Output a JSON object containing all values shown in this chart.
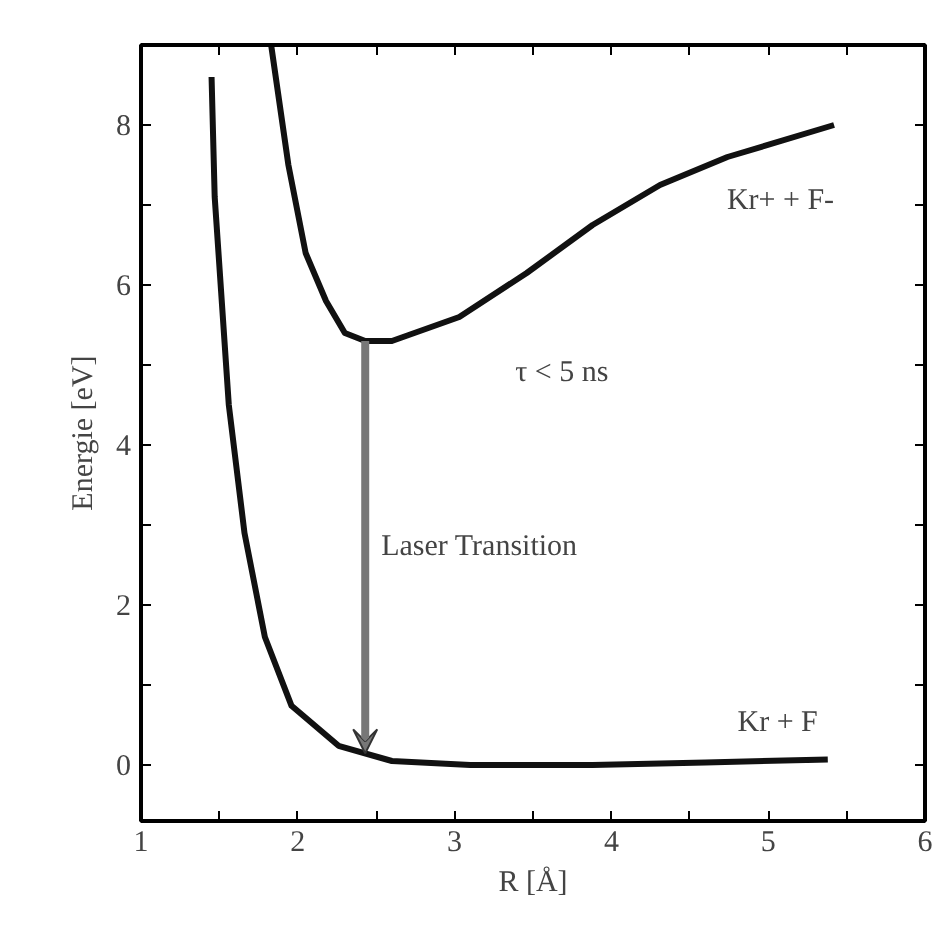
{
  "chart_data": {
    "type": "line",
    "xlabel": "R [Å]",
    "ylabel": "Energie [eV]",
    "xlim": [
      1,
      6
    ],
    "ylim": [
      -0.7,
      9
    ],
    "xticks": [
      1,
      {
        "value": 1.5,
        "label": null
      },
      2,
      {
        "value": 2.5,
        "label": null
      },
      3,
      {
        "value": 3.5,
        "label": null
      },
      4,
      {
        "value": 4.5,
        "label": null
      },
      5,
      {
        "value": 5.5,
        "label": null
      },
      6
    ],
    "yticks": [
      0,
      {
        "value": 1,
        "label": null
      },
      2,
      {
        "value": 3,
        "label": null
      },
      4,
      {
        "value": 5,
        "label": null
      },
      6,
      {
        "value": 7,
        "label": null
      },
      8
    ],
    "grid": false,
    "marker": "none",
    "line_style": "solid",
    "series": [
      {
        "color": "#111111",
        "x": [
          1.45,
          1.47,
          1.56,
          1.66,
          1.79,
          1.96,
          2.26,
          2.6,
          3.1,
          3.88,
          4.6,
          5.38
        ],
        "values": [
          8.6,
          7.1,
          4.5,
          2.9,
          1.6,
          0.74,
          0.24,
          0.05,
          0.0,
          0.0,
          0.03,
          0.07
        ]
      },
      {
        "color": "#111111",
        "x": [
          1.83,
          1.94,
          2.05,
          2.18,
          2.3,
          2.43,
          2.6,
          3.03,
          3.46,
          3.88,
          4.31,
          4.74,
          5.42
        ],
        "values": [
          9.0,
          7.5,
          6.4,
          5.8,
          5.4,
          5.3,
          5.3,
          5.6,
          6.15,
          6.75,
          7.25,
          7.6,
          8.0
        ]
      }
    ],
    "annotations": [
      "Laser Transition",
      "τ < 5 ns",
      "Kr+ + F-",
      "Kr + F"
    ]
  }
}
